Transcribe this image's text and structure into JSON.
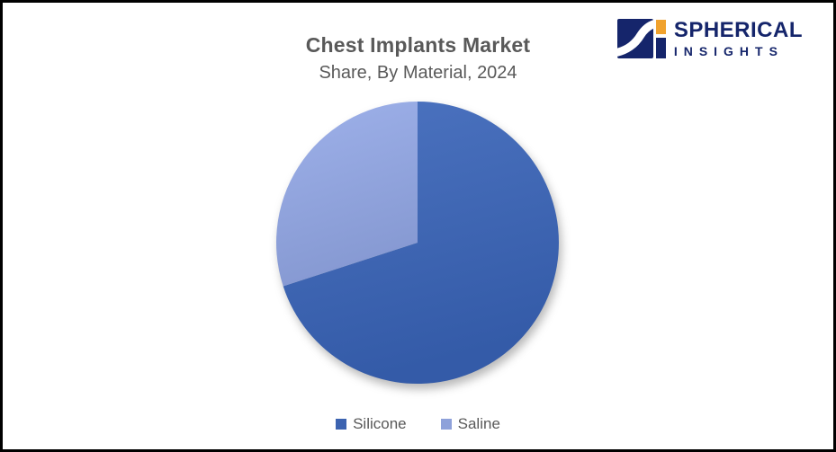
{
  "frame": {
    "background": "#ffffff",
    "border_color": "#000000"
  },
  "header": {
    "title": "Chest Implants Market",
    "subtitle": "Share, By Material, 2024",
    "text_color": "#595959"
  },
  "logo": {
    "line1": "SPHERICAL",
    "line2": "INSIGHTS",
    "navy": "#15256B",
    "orange": "#F0A22E"
  },
  "chart_data": {
    "type": "pie",
    "title": "Chest Implants Market",
    "subtitle": "Share, By Material, 2024",
    "categories": [
      "Silicone",
      "Saline"
    ],
    "values": [
      70,
      30
    ],
    "unit": "percent (estimated from slice angles)",
    "colors": [
      "#3C63B0",
      "#8EA1DA"
    ],
    "start_angle_deg": 0,
    "direction": "clockwise",
    "legend_position": "bottom",
    "data_labels": false
  },
  "legend": {
    "items": [
      {
        "label": "Silicone",
        "color": "#3C63B0"
      },
      {
        "label": "Saline",
        "color": "#8EA1DA"
      }
    ]
  }
}
